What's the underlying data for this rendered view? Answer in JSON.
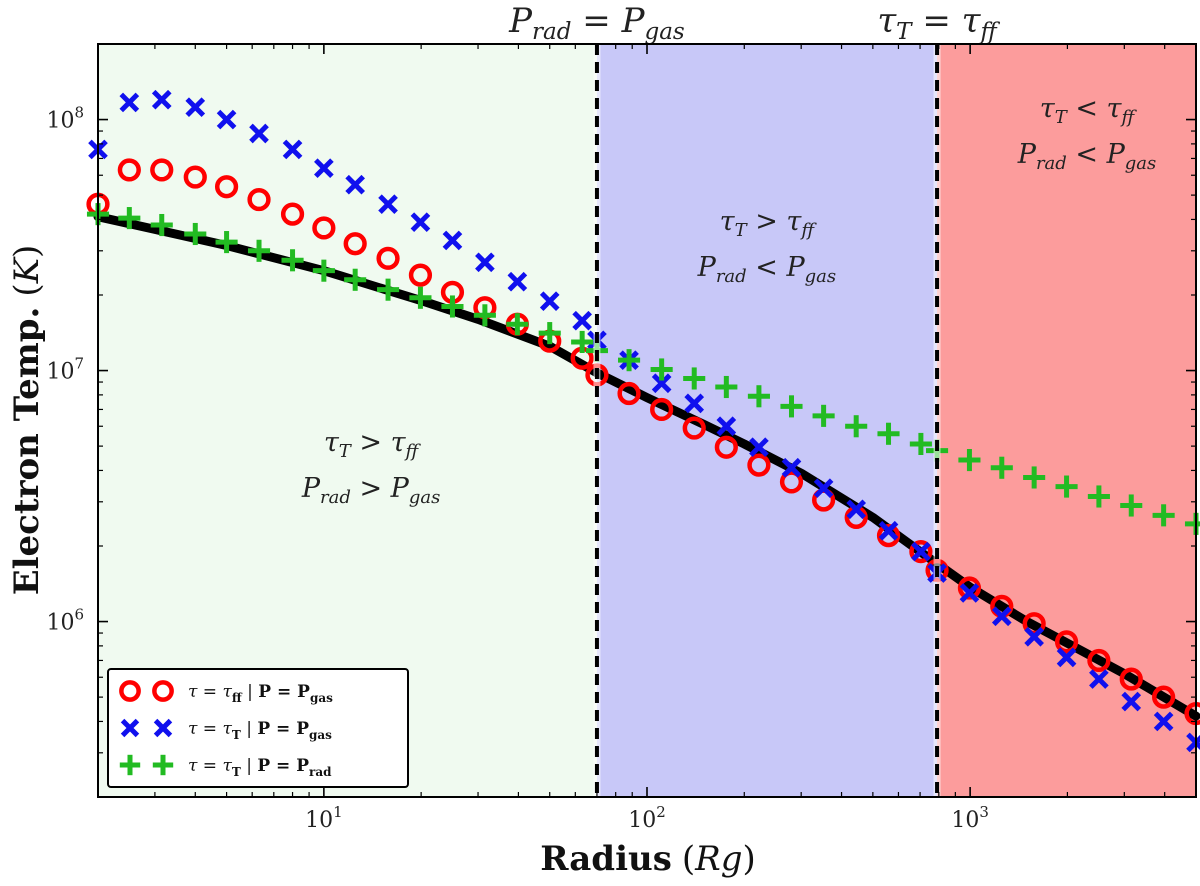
{
  "chart_data": {
    "type": "scatter",
    "xlabel_main": "Radius",
    "xlabel_unit": "Rg",
    "ylabel_main": "Electron Temp.",
    "ylabel_unit": "K",
    "xscale": "log",
    "yscale": "log",
    "xlim": [
      2,
      5000
    ],
    "ylim": [
      200000,
      200000000
    ],
    "x_ticks": [
      {
        "value": 10,
        "base": "10",
        "exp": "1"
      },
      {
        "value": 100,
        "base": "10",
        "exp": "2"
      },
      {
        "value": 1000,
        "base": "10",
        "exp": "3"
      }
    ],
    "y_ticks": [
      {
        "value": 1000000,
        "base": "10",
        "exp": "6"
      },
      {
        "value": 10000000,
        "base": "10",
        "exp": "7"
      },
      {
        "value": 100000000,
        "base": "10",
        "exp": "8"
      }
    ],
    "regions": [
      {
        "x_range": [
          2,
          70
        ],
        "color": "#f0faf0"
      },
      {
        "x_range": [
          70,
          790
        ],
        "color": "#c8c8f8"
      },
      {
        "x_range": [
          790,
          5000
        ],
        "color": "#fc9c9c"
      }
    ],
    "boundaries": [
      {
        "x": 70,
        "label_main": "P",
        "label_sub": "rad",
        "label_rhs": "P",
        "label_rhs_sub": "gas"
      },
      {
        "x": 790,
        "label_main": "τ",
        "label_sub": "T",
        "label_rhs": "τ",
        "label_rhs_sub": "ff"
      }
    ],
    "region_annotations": [
      {
        "x": 14,
        "y": 4200000,
        "line1": [
          "τ",
          "T",
          ">",
          "τ",
          "ff"
        ],
        "line2": [
          "P",
          "rad",
          ">",
          "P",
          "gas"
        ]
      },
      {
        "x": 235,
        "y": 32000000,
        "line1": [
          "τ",
          "T",
          ">",
          "τ",
          "ff"
        ],
        "line2": [
          "P",
          "rad",
          "<",
          "P",
          "gas"
        ]
      },
      {
        "x": 2300,
        "y": 90000000,
        "line1": [
          "τ",
          "T",
          "<",
          "τ",
          "ff"
        ],
        "line2": [
          "P",
          "rad",
          "<",
          "P",
          "gas"
        ]
      }
    ],
    "model_line": {
      "x": [
        2,
        3,
        5,
        10,
        20,
        30,
        50,
        70,
        100,
        150,
        200,
        300,
        500,
        700,
        790,
        1000,
        1500,
        2000,
        3000,
        5000
      ],
      "y": [
        41000000,
        36500000,
        31500000,
        25000000,
        19000000,
        16000000,
        12500000,
        9800000,
        7800000,
        6100000,
        5100000,
        3900000,
        2600000,
        1900000,
        1700000,
        1370000,
        1000000,
        820000,
        620000,
        420000
      ]
    },
    "series": [
      {
        "name_lhs": "τ = τ",
        "name_lhs_sub": "ff",
        "name_rhs": "P = P",
        "name_rhs_sub": "gas",
        "marker": "circle",
        "color": "#ff0000",
        "x": [
          2,
          2.5,
          3.15,
          4,
          5,
          6.3,
          8,
          10,
          12.5,
          15.8,
          19.9,
          25,
          31.5,
          39.7,
          50,
          63,
          70,
          88,
          111,
          140,
          176,
          222,
          280,
          352,
          444,
          559,
          704,
          790,
          995,
          1253,
          1578,
          1988,
          2503,
          3152,
          3970,
          5000
        ],
        "y": [
          46000000,
          63000000,
          63000000,
          59000000,
          54000000,
          48000000,
          42000000,
          37000000,
          32000000,
          28000000,
          24000000,
          20500000,
          17800000,
          15300000,
          13100000,
          11200000,
          9600000,
          8100000,
          7000000,
          5900000,
          4950000,
          4200000,
          3600000,
          3050000,
          2600000,
          2200000,
          1900000,
          1600000,
          1360000,
          1150000,
          980000,
          830000,
          700000,
          590000,
          500000,
          430000
        ]
      },
      {
        "name_lhs": "τ = τ",
        "name_lhs_sub": "T",
        "name_rhs": "P = P",
        "name_rhs_sub": "gas",
        "marker": "x",
        "color": "#1010ee",
        "x": [
          2,
          2.5,
          3.15,
          4,
          5,
          6.3,
          8,
          10,
          12.5,
          15.8,
          19.9,
          25,
          31.5,
          39.7,
          50,
          63,
          70,
          88,
          111,
          140,
          176,
          222,
          280,
          352,
          444,
          559,
          704,
          790,
          995,
          1253,
          1578,
          1988,
          2503,
          3152,
          3970,
          5000
        ],
        "y": [
          76000000,
          117000000,
          120000000,
          112000000,
          100000000,
          88000000,
          76000000,
          64000000,
          55000000,
          46000000,
          39000000,
          33000000,
          27000000,
          22600000,
          18900000,
          15800000,
          13200000,
          11000000,
          8900000,
          7400000,
          6000000,
          4950000,
          4100000,
          3400000,
          2800000,
          2300000,
          1900000,
          1560000,
          1300000,
          1050000,
          870000,
          720000,
          590000,
          480000,
          400000,
          330000
        ]
      },
      {
        "name_lhs": "τ = τ",
        "name_lhs_sub": "T",
        "name_rhs": "P = P",
        "name_rhs_sub": "rad",
        "marker": "plus",
        "color": "#22bb22",
        "x": [
          2,
          2.5,
          3.15,
          4,
          5,
          6.3,
          8,
          10,
          12.5,
          15.8,
          19.9,
          25,
          31.5,
          39.7,
          50,
          63,
          70,
          88,
          111,
          140,
          176,
          222,
          280,
          352,
          444,
          559,
          704,
          790,
          995,
          1253,
          1578,
          1988,
          2503,
          3152,
          3970,
          5000
        ],
        "y": [
          42000000,
          40500000,
          38000000,
          35000000,
          32500000,
          30000000,
          27500000,
          25000000,
          23000000,
          21000000,
          19500000,
          18000000,
          16600000,
          15300000,
          14100000,
          13000000,
          12000000,
          11000000,
          10100000,
          9300000,
          8600000,
          7900000,
          7200000,
          6600000,
          6000000,
          5600000,
          5100000,
          4800000,
          4400000,
          4100000,
          3750000,
          3450000,
          3150000,
          2900000,
          2650000,
          2450000
        ]
      }
    ],
    "legend": {
      "position": "lower-left",
      "separator": "|"
    }
  }
}
